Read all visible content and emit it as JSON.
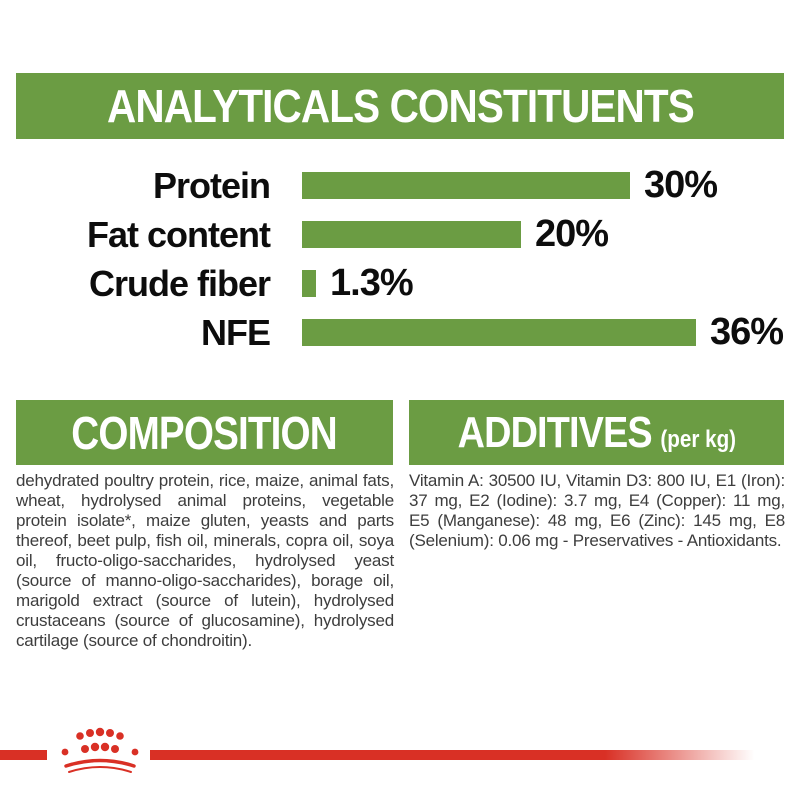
{
  "header": {
    "title": "ANALYTICALS CONSTITUENTS"
  },
  "chart_data": {
    "type": "bar",
    "orientation": "horizontal",
    "title": "ANALYTICALS CONSTITUENTS",
    "categories": [
      "Protein",
      "Fat content",
      "Crude fiber",
      "NFE"
    ],
    "values": [
      30,
      20,
      1.3,
      36
    ],
    "unit": "%",
    "value_labels": [
      "30%",
      "20%",
      "1.3%",
      "36%"
    ],
    "xlim": [
      0,
      40
    ],
    "grid": false,
    "legend": false,
    "bar_color": "#6b9c43"
  },
  "sections": {
    "composition": {
      "title": "COMPOSITION",
      "body": "dehydrated poultry protein, rice, maize, animal fats, wheat, hydrolysed animal proteins, vegetable protein isolate*, maize gluten, yeasts and parts thereof, beet pulp, fish oil, minerals, copra oil, soya oil, fructo-oligo-saccharides, hydrolysed yeast (source of manno-oligo-saccharides), borage oil, marigold extract (source of lutein), hydrolysed crustaceans (source of glucosamine), hydrolysed cartilage (source of chondroitin)."
    },
    "additives": {
      "title": "ADDITIVES",
      "title_suffix": "(per kg)",
      "body": "Vitamin A: 30500 IU, Vitamin D3: 800 IU, E1 (Iron): 37 mg, E2 (Iodine): 3.7 mg, E4 (Copper): 11 mg, E5 (Manganese): 48 mg, E6 (Zinc): 145 mg, E8 (Selenium): 0.06 mg - Preservatives - Antioxidants."
    }
  },
  "footer": {
    "logo_icon": "royal-canin-crown-icon"
  },
  "colors": {
    "green": "#6b9c43",
    "red": "#d93025",
    "body_text": "#3d3d3d",
    "chart_text": "#0d0d0d"
  }
}
